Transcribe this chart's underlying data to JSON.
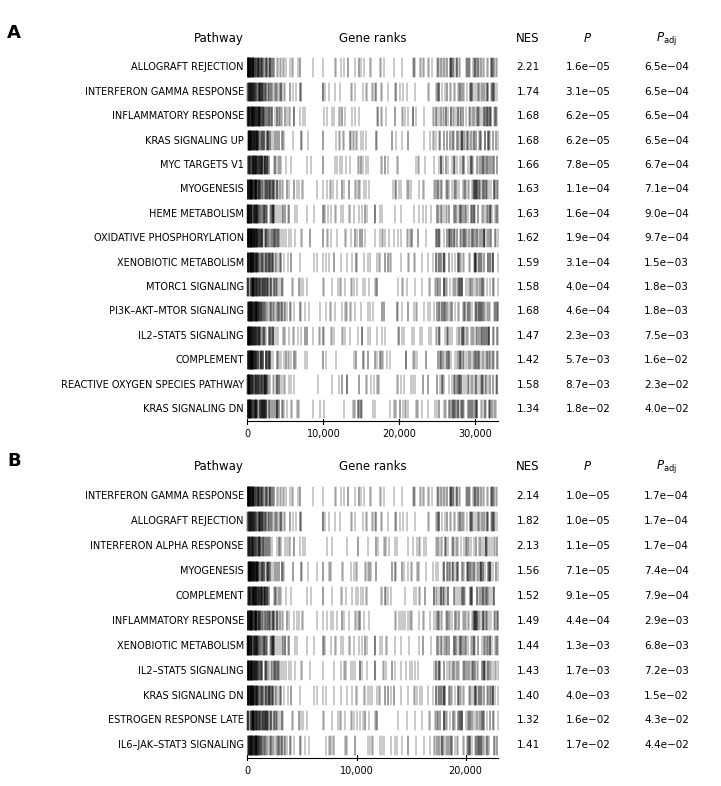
{
  "panel_A": {
    "pathways": [
      "ALLOGRAFT REJECTION",
      "INTERFERON GAMMA RESPONSE",
      "INFLAMMATORY RESPONSE",
      "KRAS SIGNALING UP",
      "MYC TARGETS V1",
      "MYOGENESIS",
      "HEME METABOLISM",
      "OXIDATIVE PHOSPHORYLATION",
      "XENOBIOTIC METABOLISM",
      "MTORC1 SIGNALING",
      "PI3K–AKT–MTOR SIGNALING",
      "IL2–STAT5 SIGNALING",
      "COMPLEMENT",
      "REACTIVE OXYGEN SPECIES PATHWAY",
      "KRAS SIGNALING DN"
    ],
    "NES": [
      2.21,
      1.74,
      1.68,
      1.68,
      1.66,
      1.63,
      1.63,
      1.62,
      1.59,
      1.58,
      1.68,
      1.47,
      1.42,
      1.58,
      1.34
    ],
    "P": [
      "1.6e−05",
      "3.1e−05",
      "6.2e−05",
      "6.2e−05",
      "7.8e−05",
      "1.1e−04",
      "1.6e−04",
      "1.9e−04",
      "3.1e−04",
      "4.0e−04",
      "4.6e−04",
      "2.3e−03",
      "5.7e−03",
      "8.7e−03",
      "1.8e−02"
    ],
    "Padj": [
      "6.5e−04",
      "6.5e−04",
      "6.5e−04",
      "6.5e−04",
      "6.7e−04",
      "7.1e−04",
      "9.0e−04",
      "9.7e−04",
      "1.5e−03",
      "1.8e−03",
      "1.8e−03",
      "7.5e−03",
      "1.6e−02",
      "2.3e−02",
      "4.0e−02"
    ],
    "xmax": 33000,
    "xticks": [
      0,
      10000,
      20000,
      30000
    ],
    "xticklabels": [
      "0",
      "10,000",
      "20,000",
      "30,000"
    ],
    "gene_ranks_seeds": [
      42,
      7,
      13,
      99,
      55,
      21,
      67,
      3,
      88,
      14,
      33,
      76,
      51,
      9,
      44
    ],
    "n_genes": [
      200,
      185,
      210,
      190,
      175,
      220,
      195,
      230,
      200,
      180,
      215,
      195,
      205,
      185,
      210
    ]
  },
  "panel_B": {
    "pathways": [
      "INTERFERON GAMMA RESPONSE",
      "ALLOGRAFT REJECTION",
      "INTERFERON ALPHA RESPONSE",
      "MYOGENESIS",
      "COMPLEMENT",
      "INFLAMMATORY RESPONSE",
      "XENOBIOTIC METABOLISM",
      "IL2–STAT5 SIGNALING",
      "KRAS SIGNALING DN",
      "ESTROGEN RESPONSE LATE",
      "IL6–JAK–STAT3 SIGNALING"
    ],
    "NES": [
      2.14,
      1.82,
      2.13,
      1.56,
      1.52,
      1.49,
      1.44,
      1.43,
      1.4,
      1.32,
      1.41
    ],
    "P": [
      "1.0e−05",
      "1.0e−05",
      "1.1e−05",
      "7.1e−05",
      "9.1e−05",
      "4.4e−04",
      "1.3e−03",
      "1.7e−03",
      "4.0e−03",
      "1.6e−02",
      "1.7e−02"
    ],
    "Padj": [
      "1.7e−04",
      "1.7e−04",
      "1.7e−04",
      "7.4e−04",
      "7.9e−04",
      "2.9e−03",
      "6.8e−03",
      "7.2e−03",
      "1.5e−02",
      "4.3e−02",
      "4.4e−02"
    ],
    "xmax": 23000,
    "xticks": [
      0,
      10000,
      20000
    ],
    "xticklabels": [
      "0",
      "10,000",
      "20,000"
    ],
    "gene_ranks_seeds": [
      42,
      7,
      13,
      99,
      55,
      21,
      67,
      3,
      88,
      14,
      33
    ],
    "n_genes": [
      200,
      185,
      150,
      220,
      195,
      210,
      200,
      195,
      210,
      185,
      195
    ]
  },
  "header_pathway": "Pathway",
  "header_gene_ranks": "Gene ranks",
  "header_nes": "NES",
  "header_p": "P",
  "header_padj": "P_adj",
  "label_A": "A",
  "label_B": "B",
  "font_size_header": 8.5,
  "font_size_pathway": 7.0,
  "font_size_values": 7.5,
  "font_size_label": 13,
  "font_size_tick": 7.0,
  "bar_color": "black",
  "bar_linewidth": 0.35,
  "bar_alpha": 0.85,
  "axis_linewidth": 0.8
}
